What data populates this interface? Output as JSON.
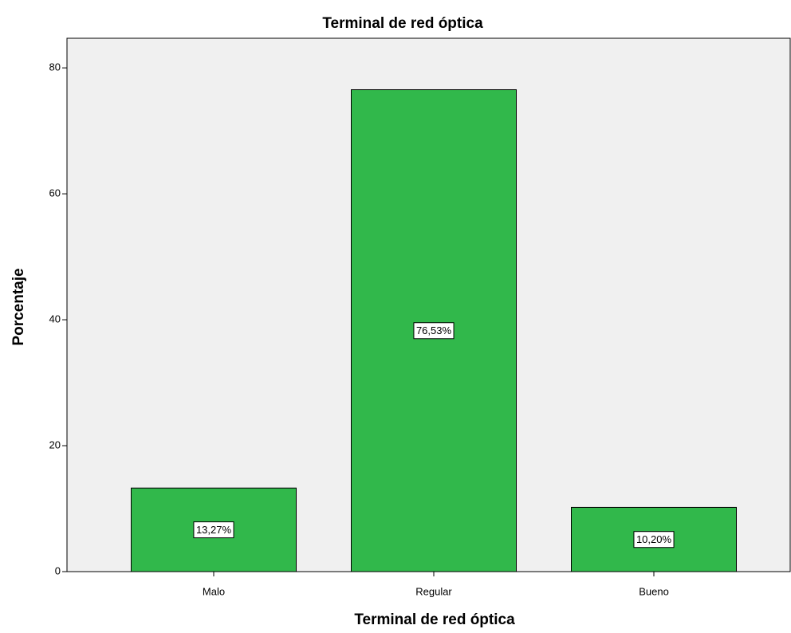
{
  "chart_data": {
    "type": "bar",
    "title": "Terminal de red óptica",
    "x_label": "Terminal de red óptica",
    "y_label": "Porcentaje",
    "categories": [
      "Malo",
      "Regular",
      "Bueno"
    ],
    "values": [
      13.27,
      76.53,
      10.2
    ],
    "value_labels": [
      "13,27%",
      "76,53%",
      "10,20%"
    ],
    "color": "#31b84b",
    "ylim": [
      0,
      84.7
    ],
    "yticks": [
      0,
      20,
      40,
      60,
      80
    ],
    "grid": false
  }
}
